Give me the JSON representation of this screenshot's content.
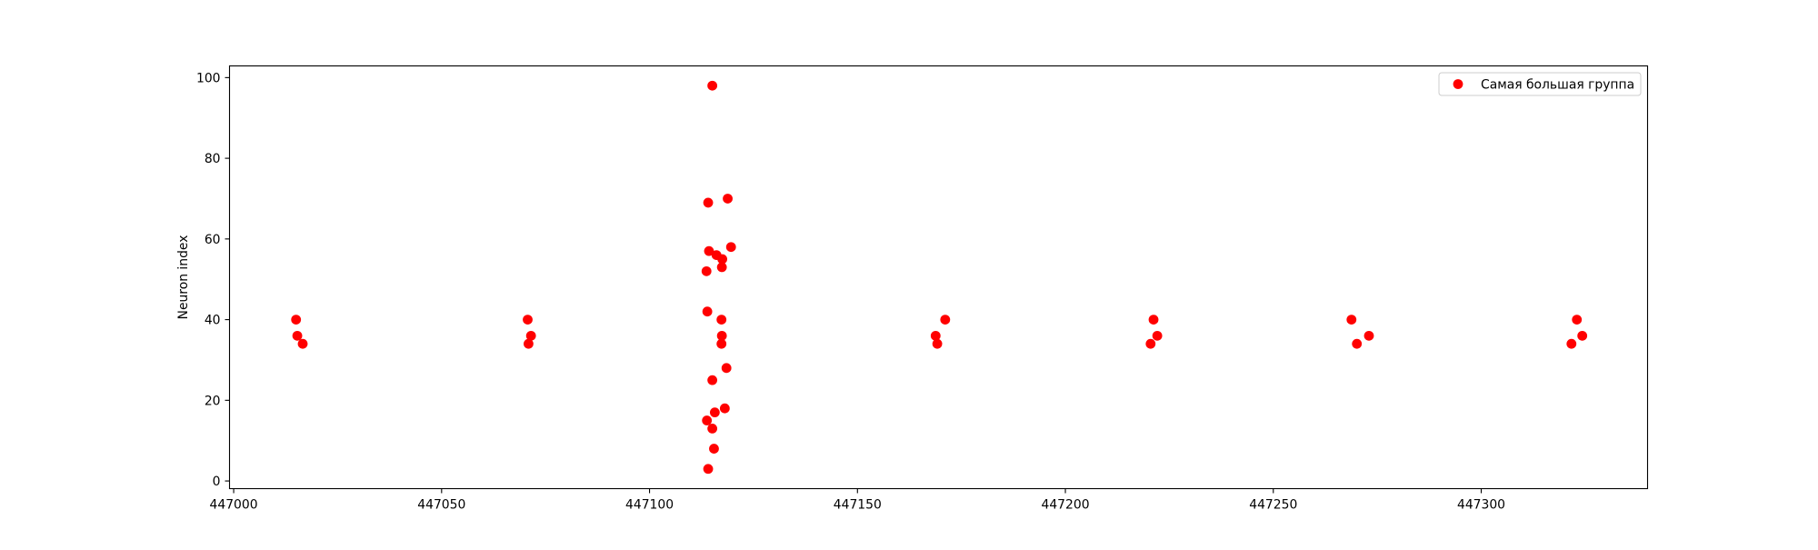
{
  "chart_data": {
    "type": "scatter",
    "title": "",
    "xlabel": "",
    "ylabel": "Neuron index",
    "xlim": [
      446999,
      447340
    ],
    "ylim": [
      -1.9,
      102.9
    ],
    "xticks": [
      447000,
      447050,
      447100,
      447150,
      447200,
      447250,
      447300
    ],
    "yticks": [
      0,
      20,
      40,
      60,
      80,
      100
    ],
    "grid": false,
    "legend": {
      "position": "top-right",
      "entries": [
        "Самая большая группа"
      ]
    },
    "series": [
      {
        "name": "Самая большая группа",
        "color": "#ff0000",
        "marker": "circle",
        "points": [
          [
            447015,
            40
          ],
          [
            447015.3,
            36
          ],
          [
            447016.6,
            34
          ],
          [
            447070.7,
            40
          ],
          [
            447071.5,
            36
          ],
          [
            447070.9,
            34
          ],
          [
            447115.1,
            98
          ],
          [
            447114.1,
            69
          ],
          [
            447118.8,
            70
          ],
          [
            447114.3,
            57
          ],
          [
            447116.1,
            56
          ],
          [
            447119.6,
            58
          ],
          [
            447117.5,
            55
          ],
          [
            447117.4,
            53
          ],
          [
            447113.7,
            52
          ],
          [
            447113.9,
            42
          ],
          [
            447117.3,
            40
          ],
          [
            447117.4,
            36
          ],
          [
            447117.3,
            34
          ],
          [
            447118.5,
            28
          ],
          [
            447115.1,
            25
          ],
          [
            447118.1,
            18
          ],
          [
            447115.7,
            17
          ],
          [
            447113.8,
            15
          ],
          [
            447115.1,
            13
          ],
          [
            447115.5,
            8
          ],
          [
            447114.1,
            3
          ],
          [
            447171.1,
            40
          ],
          [
            447168.8,
            36
          ],
          [
            447169.2,
            34
          ],
          [
            447221.2,
            40
          ],
          [
            447222.1,
            36
          ],
          [
            447220.5,
            34
          ],
          [
            447268.8,
            40
          ],
          [
            447273,
            36
          ],
          [
            447270.1,
            34
          ],
          [
            447323,
            40
          ],
          [
            447324.3,
            36
          ],
          [
            447321.7,
            34
          ]
        ]
      }
    ]
  }
}
